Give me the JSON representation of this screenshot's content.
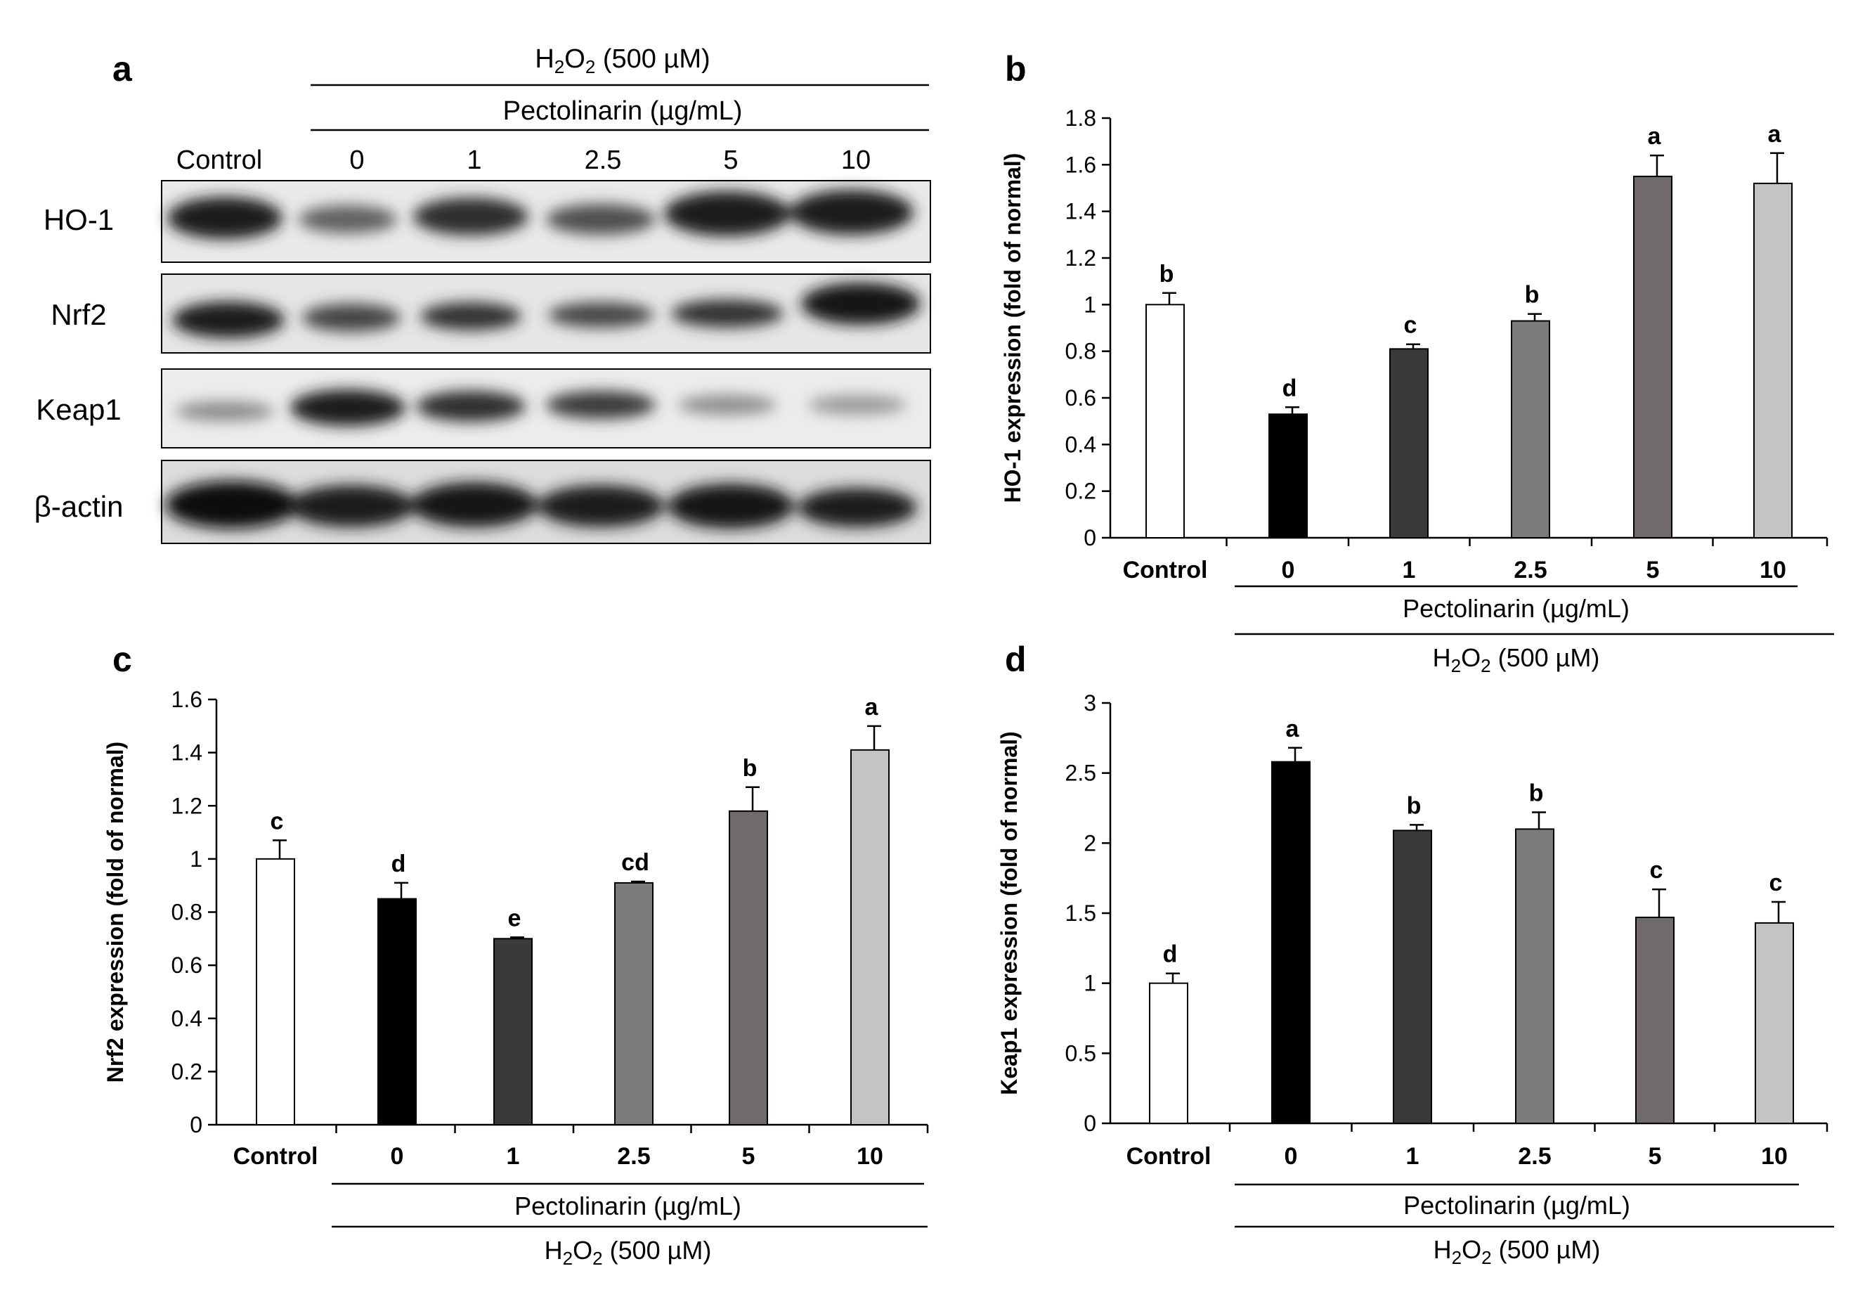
{
  "panel_a": {
    "letter": "a",
    "h2o2_label": "H",
    "h2o2_sub1": "2",
    "h2o2_mid": "O",
    "h2o2_sub2": "2",
    "h2o2_conc": " (500 µM)",
    "pectolinarin_label": "Pectolinarin (µg/mL)",
    "lane_labels": [
      "Control",
      "0",
      "1",
      "2.5",
      "5",
      "10"
    ],
    "row_labels": [
      "HO-1",
      "Nrf2",
      "Keap1",
      "β-actin"
    ]
  },
  "chart_data": [
    {
      "panel": "b",
      "type": "bar",
      "categories": [
        "Control",
        "0",
        "1",
        "2.5",
        "5",
        "10"
      ],
      "values": [
        1.0,
        0.53,
        0.81,
        0.93,
        1.55,
        1.52
      ],
      "errors": [
        0.05,
        0.03,
        0.02,
        0.03,
        0.09,
        0.13
      ],
      "letters": [
        "b",
        "d",
        "c",
        "b",
        "a",
        "a"
      ],
      "colors": [
        "#ffffff",
        "#000000",
        "#3a3a3a",
        "#7b7b7b",
        "#706b6a",
        "#c4c4c4"
      ],
      "ylabel": "HO-1 expression (fold of normal)",
      "ylim": [
        0,
        1.8
      ],
      "yticks": [
        "0",
        "0.2",
        "0.4",
        "0.6",
        "0.8",
        "1",
        "1.2",
        "1.4",
        "1.6",
        "1.8"
      ],
      "group1_label": "Pectolinarin (µg/mL)",
      "group2_label": "H2O2 (500 µM)"
    },
    {
      "panel": "c",
      "type": "bar",
      "categories": [
        "Control",
        "0",
        "1",
        "2.5",
        "5",
        "10"
      ],
      "values": [
        1.0,
        0.85,
        0.7,
        0.91,
        1.18,
        1.41
      ],
      "errors": [
        0.07,
        0.06,
        0.005,
        0.005,
        0.09,
        0.09
      ],
      "letters": [
        "c",
        "d",
        "e",
        "cd",
        "b",
        "a"
      ],
      "colors": [
        "#ffffff",
        "#000000",
        "#3a3a3a",
        "#7b7b7b",
        "#706b6a",
        "#c4c4c4"
      ],
      "ylabel": "Nrf2 expression (fold of normal)",
      "ylim": [
        0,
        1.6
      ],
      "yticks": [
        "0",
        "0.2",
        "0.4",
        "0.6",
        "0.8",
        "1",
        "1.2",
        "1.4",
        "1.6"
      ],
      "group1_label": "Pectolinarin (µg/mL)",
      "group2_label": "H2O2 (500 µM)"
    },
    {
      "panel": "d",
      "type": "bar",
      "categories": [
        "Control",
        "0",
        "1",
        "2.5",
        "5",
        "10"
      ],
      "values": [
        1.0,
        2.58,
        2.09,
        2.1,
        1.47,
        1.43
      ],
      "errors": [
        0.07,
        0.1,
        0.04,
        0.12,
        0.2,
        0.15
      ],
      "letters": [
        "d",
        "a",
        "b",
        "b",
        "c",
        "c"
      ],
      "colors": [
        "#ffffff",
        "#000000",
        "#3a3a3a",
        "#7b7b7b",
        "#706b6a",
        "#c4c4c4"
      ],
      "ylabel": "Keap1 expression (fold of normal)",
      "ylim": [
        0,
        3
      ],
      "yticks": [
        "0",
        "0.5",
        "1",
        "1.5",
        "2",
        "2.5",
        "3"
      ],
      "group1_label": "Pectolinarin (µg/mL)",
      "group2_label": "H2O2 (500 µM)"
    }
  ]
}
